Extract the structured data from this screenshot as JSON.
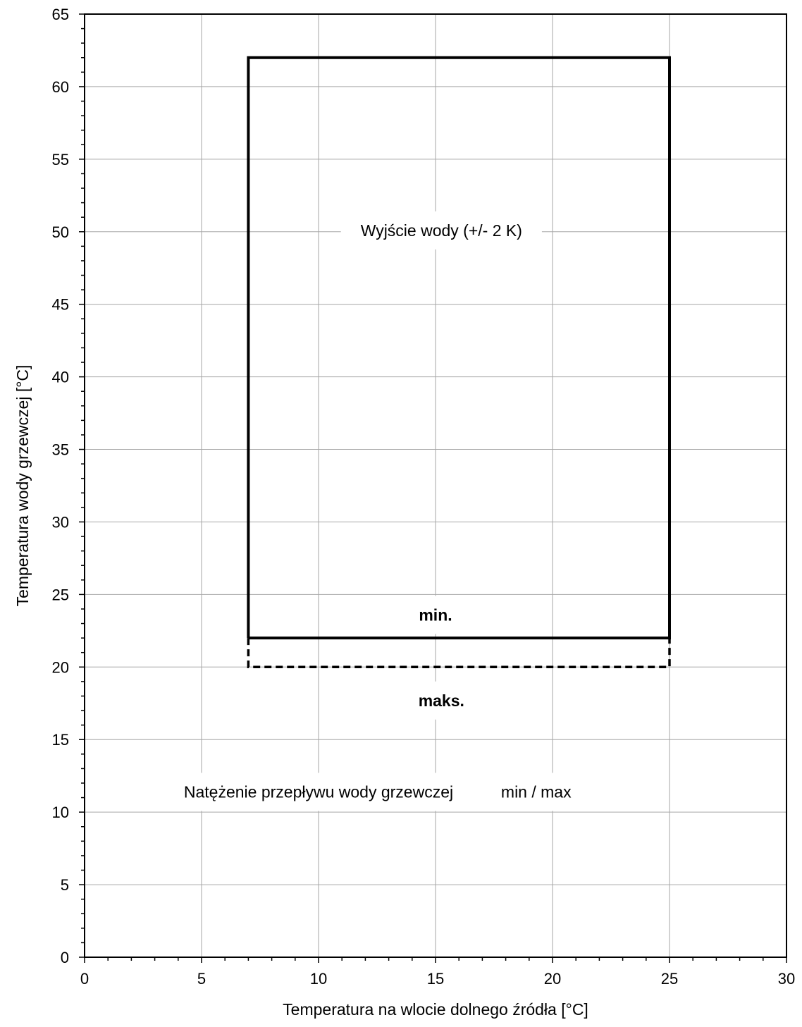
{
  "chart_data": {
    "type": "line",
    "xlabel": "Temperatura na wlocie dolnego źródła [°C]",
    "ylabel": "Temperatura wody grzewczej [°C]",
    "xlim": [
      0,
      30
    ],
    "ylim": [
      0,
      65
    ],
    "x_major_ticks": [
      0,
      5,
      10,
      15,
      20,
      25,
      30
    ],
    "y_major_ticks": [
      0,
      5,
      10,
      15,
      20,
      25,
      30,
      35,
      40,
      45,
      50,
      55,
      60,
      65
    ],
    "x_minor_step": 1,
    "y_minor_step": 1,
    "grid": true,
    "series": [
      {
        "style": "solid",
        "color": "#000000",
        "points": [
          [
            7,
            22
          ],
          [
            7,
            62
          ],
          [
            25,
            62
          ],
          [
            25,
            22
          ],
          [
            7,
            22
          ]
        ]
      },
      {
        "style": "dashed",
        "color": "#000000",
        "points": [
          [
            7,
            22
          ],
          [
            7,
            20
          ],
          [
            25,
            20
          ],
          [
            25,
            22
          ]
        ]
      }
    ],
    "annotations": [
      {
        "text": "Wyjście wody (+/- 2 K)",
        "x": 15.25,
        "y": 50,
        "bold": false
      },
      {
        "text": "min.",
        "x": 15,
        "y": 23.5,
        "bold": true
      },
      {
        "text": "maks.",
        "x": 15.25,
        "y": 17.6,
        "bold": true
      },
      {
        "text": "Natężenie przepływu wody grzewczej",
        "x": 10,
        "y": 11.3,
        "bold": false
      },
      {
        "text": "min / max",
        "x": 19.3,
        "y": 11.3,
        "bold": false
      }
    ]
  }
}
